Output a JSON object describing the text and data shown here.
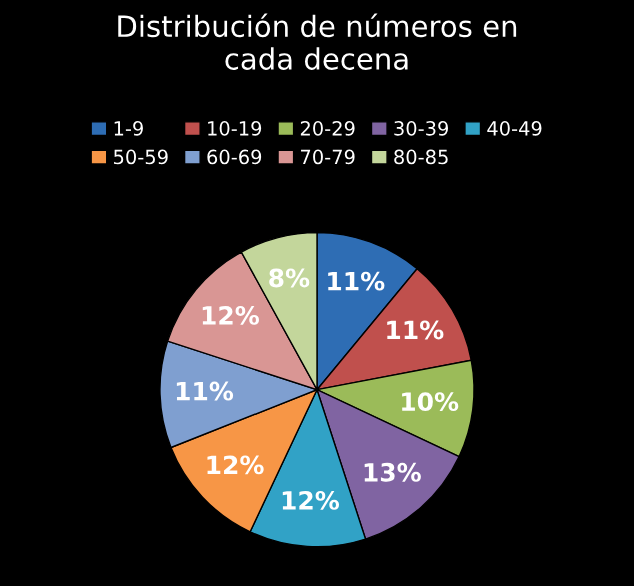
{
  "chart_data": {
    "type": "pie",
    "title": "Distribución de números en\ncada decena",
    "categories": [
      "1-9",
      "10-19",
      "20-29",
      "30-39",
      "40-49",
      "50-59",
      "60-69",
      "70-79",
      "80-85"
    ],
    "values": [
      11,
      11,
      10,
      13,
      12,
      12,
      11,
      12,
      8
    ],
    "colors": [
      "#2e6db4",
      "#c0504d",
      "#9bbb59",
      "#8064a2",
      "#31a2c6",
      "#f79646",
      "#7f9fd0",
      "#d99694",
      "#c3d69b"
    ],
    "value_labels": [
      "11%",
      "11%",
      "10%",
      "13%",
      "12%",
      "12%",
      "11%",
      "12%",
      "8%"
    ],
    "legend": "top"
  }
}
